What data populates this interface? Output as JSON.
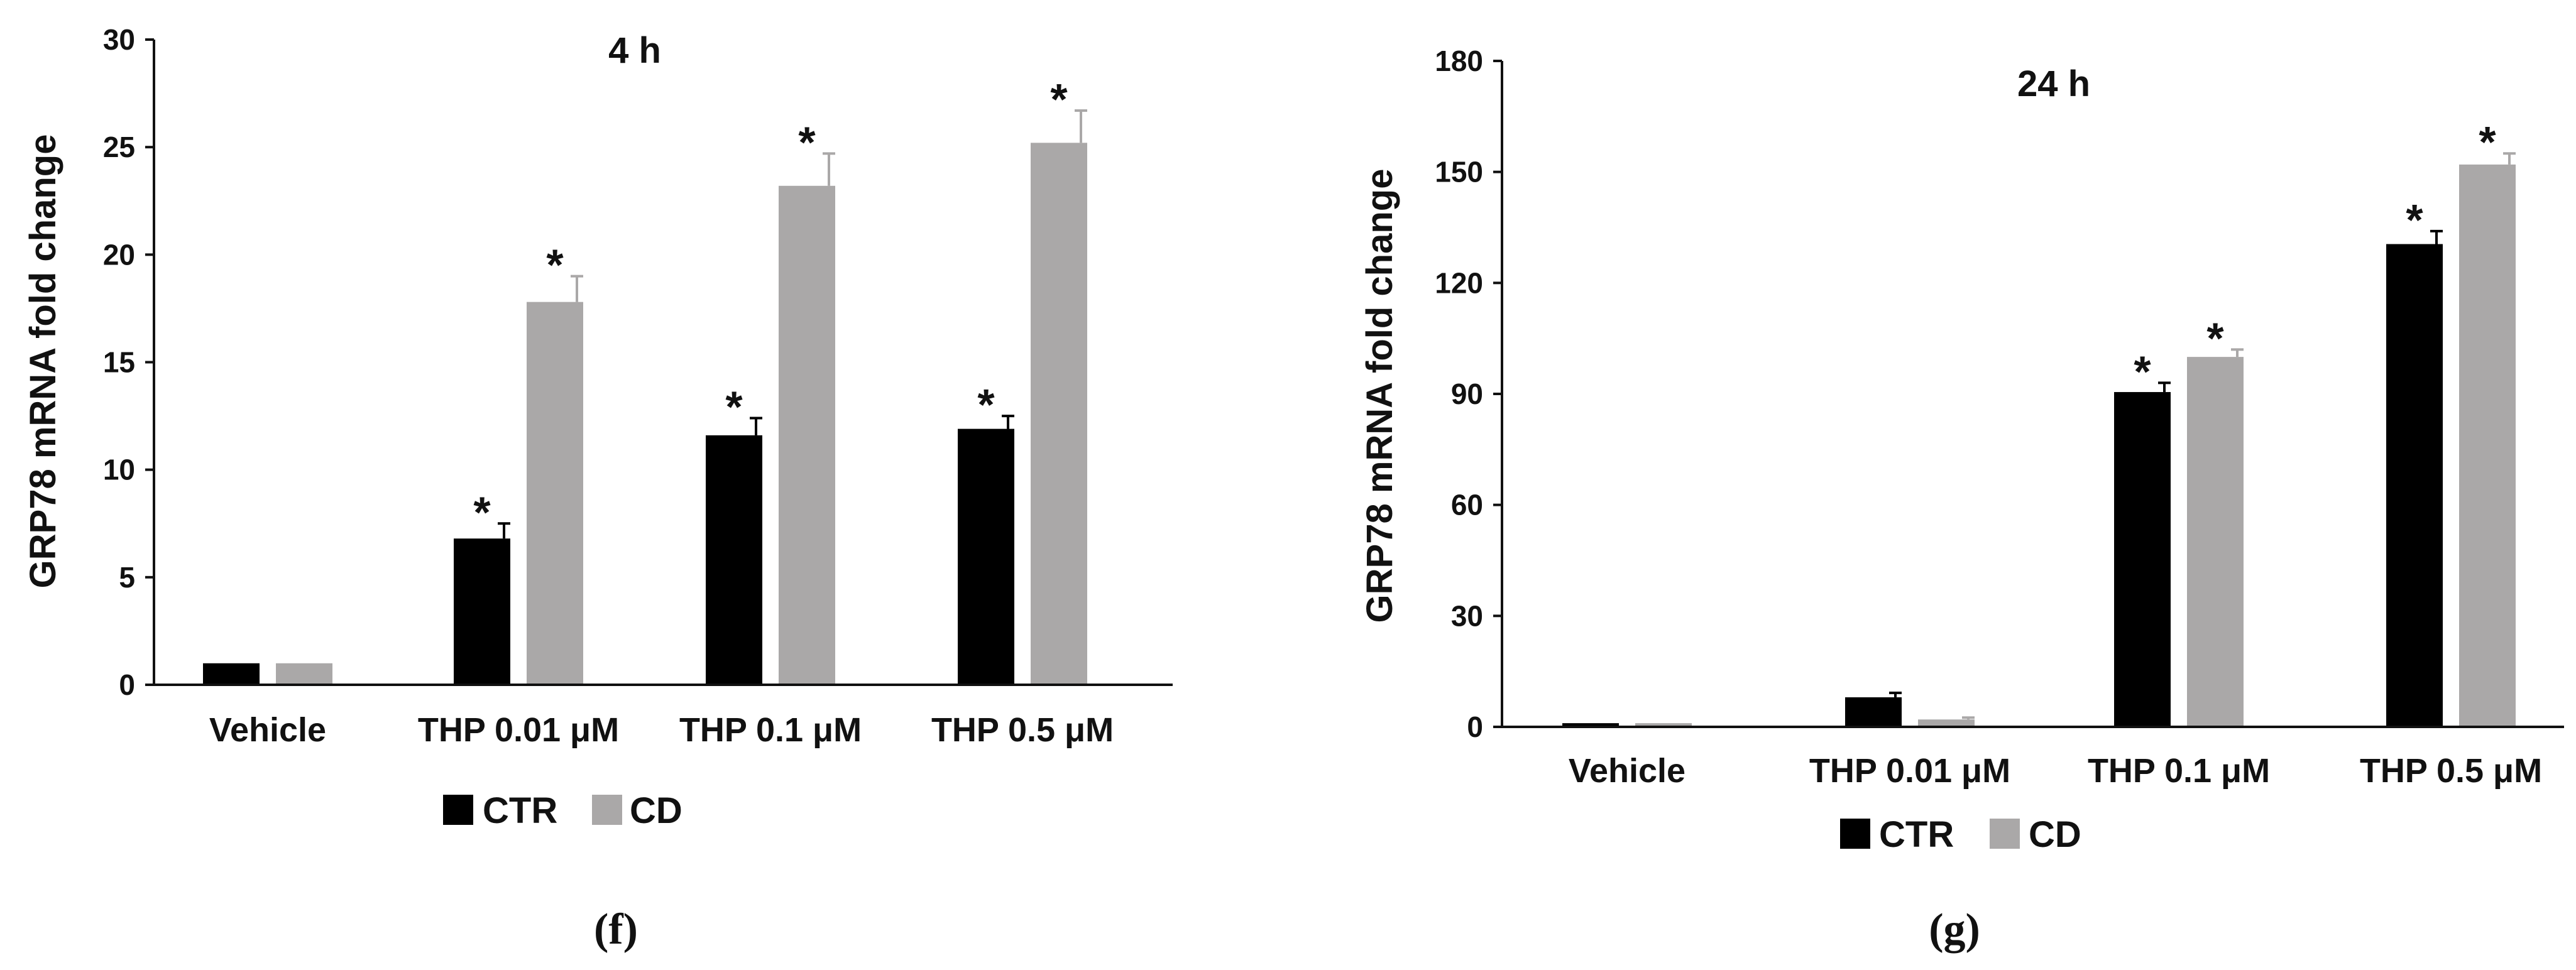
{
  "colors": {
    "ctr": "#000000",
    "cd": "#aaa8a8",
    "axis": "#111111"
  },
  "legend": {
    "ctr_label": "CTR",
    "cd_label": "CD"
  },
  "chart_data": [
    {
      "type": "bar",
      "panel_label": "(f)",
      "title": "4 h",
      "ylabel": "GRP78 mRNA fold change",
      "xlabel": "",
      "categories": [
        "Vehicle",
        "THP 0.01 μM",
        "THP 0.1 μM",
        "THP 0.5 μM"
      ],
      "ylim": [
        0,
        30
      ],
      "yticks": [
        0,
        5,
        10,
        15,
        20,
        25,
        30
      ],
      "grid": false,
      "legend_position": "bottom-left",
      "series": [
        {
          "name": "CTR",
          "values": [
            1.0,
            6.8,
            11.6,
            11.9
          ],
          "errors": [
            0.0,
            0.7,
            0.8,
            0.6
          ],
          "significant": [
            false,
            true,
            true,
            true
          ]
        },
        {
          "name": "CD",
          "values": [
            1.0,
            17.8,
            23.2,
            25.2
          ],
          "errors": [
            0.0,
            1.2,
            1.5,
            1.5
          ],
          "significant": [
            false,
            true,
            true,
            true
          ]
        }
      ],
      "annotation_symbol": "*"
    },
    {
      "type": "bar",
      "panel_label": "(g)",
      "title": "24 h",
      "ylabel": "GRP78 mRNA fold change",
      "xlabel": "",
      "categories": [
        "Vehicle",
        "THP 0.01 μM",
        "THP 0.1 μM",
        "THP 0.5 μM"
      ],
      "ylim": [
        0,
        180
      ],
      "yticks": [
        0,
        30,
        60,
        90,
        120,
        150,
        180
      ],
      "grid": false,
      "legend_position": "bottom-left",
      "series": [
        {
          "name": "CTR",
          "values": [
            1.0,
            8.0,
            90.5,
            130.5
          ],
          "errors": [
            0.0,
            1.2,
            2.5,
            3.5
          ],
          "significant": [
            false,
            false,
            true,
            true
          ]
        },
        {
          "name": "CD",
          "values": [
            1.0,
            2.0,
            100.0,
            152.0
          ],
          "errors": [
            0.0,
            0.5,
            2.0,
            3.0
          ],
          "significant": [
            false,
            false,
            true,
            true
          ]
        }
      ],
      "annotation_symbol": "*"
    }
  ]
}
